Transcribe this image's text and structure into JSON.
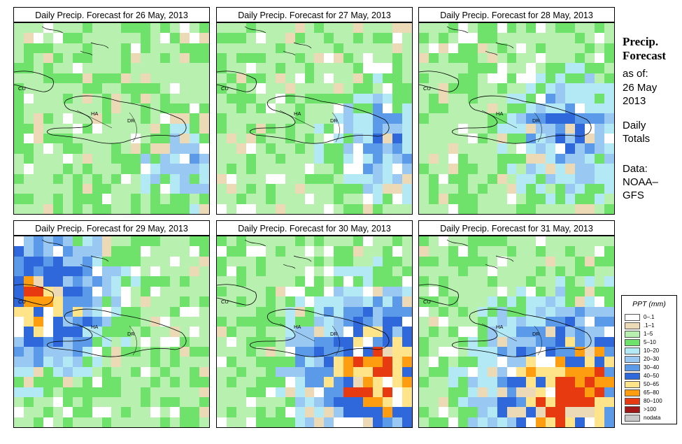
{
  "panels": [
    {
      "title": "Daily Precip. Forecast for  26 May, 2013",
      "wet_x": 0.85,
      "wet_y": 0.7,
      "wetness": 0.45
    },
    {
      "title": "Daily Precip. Forecast for  27 May, 2013",
      "wet_x": 0.85,
      "wet_y": 0.6,
      "wetness": 0.55
    },
    {
      "title": "Daily Precip. Forecast for  28 May, 2013",
      "wet_x": 0.75,
      "wet_y": 0.55,
      "wetness": 0.6
    },
    {
      "title": "Daily Precip. Forecast for  29 May, 2013",
      "wet_x": 0.1,
      "wet_y": 0.3,
      "wetness": 0.8
    },
    {
      "title": "Daily Precip. Forecast for  30 May, 2013",
      "wet_x": 0.8,
      "wet_y": 0.7,
      "wetness": 0.9
    },
    {
      "title": "Daily Precip. Forecast for  31 May, 2013",
      "wet_x": 0.75,
      "wet_y": 0.8,
      "wetness": 0.95
    }
  ],
  "map_labels": {
    "cuba": "CU",
    "haiti": "HA",
    "dominican_republic": "DR"
  },
  "side_info": {
    "title_line1": "Precip.",
    "title_line2": "Forecast",
    "asof": "as of:",
    "date_line1": "26 May",
    "date_line2": "2013",
    "totals_line1": "Daily",
    "totals_line2": "Totals",
    "data_line1": "Data:",
    "data_line2": "NOAA–",
    "data_line3": "GFS"
  },
  "legend": {
    "title": "PPT (mm)",
    "items": [
      {
        "label": "0–.1",
        "color": "#ffffff"
      },
      {
        "label": ".1–1",
        "color": "#ecd9b5"
      },
      {
        "label": "1–5",
        "color": "#b8f0b0"
      },
      {
        "label": "5–10",
        "color": "#6ee26a"
      },
      {
        "label": "10–20",
        "color": "#b3e8f5"
      },
      {
        "label": "20–30",
        "color": "#99c8f2"
      },
      {
        "label": "30–40",
        "color": "#5b9ae8"
      },
      {
        "label": "40–50",
        "color": "#2e68da"
      },
      {
        "label": "50–65",
        "color": "#ffe48a"
      },
      {
        "label": "65–80",
        "color": "#ff9d10"
      },
      {
        "label": "80–100",
        "color": "#e83a10"
      },
      {
        "label": ">100",
        "color": "#a01818"
      },
      {
        "label": "nodata",
        "color": "#c8c8c8"
      }
    ]
  }
}
